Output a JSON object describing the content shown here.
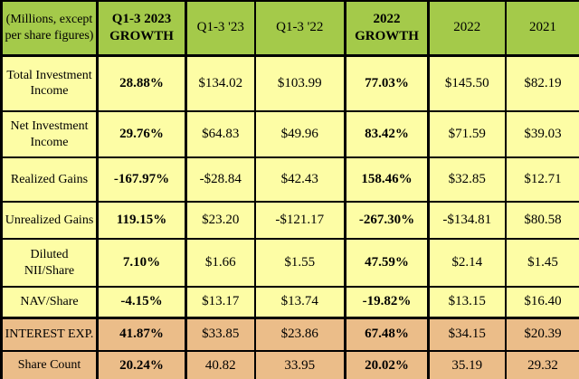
{
  "colors": {
    "header_green": "#A4CA4A",
    "body_yellow": "#FDFDA5",
    "highlight_tan": "#EBBD89",
    "border_black": "#000000",
    "text_black": "#000000"
  },
  "chart_data": {
    "type": "table",
    "corner_header": "(Millions, except per share figures)",
    "columns": [
      {
        "label": "Q1-3 2023 GROWTH",
        "growth": true
      },
      {
        "label": "Q1-3 '23",
        "growth": false
      },
      {
        "label": "Q1-3 '22",
        "growth": false
      },
      {
        "label": "2022 GROWTH",
        "growth": true
      },
      {
        "label": "2022",
        "growth": false
      },
      {
        "label": "2021",
        "growth": false
      }
    ],
    "rows": [
      {
        "label": "Total Investment Income",
        "values": [
          "28.88%",
          "$134.02",
          "$103.99",
          "77.03%",
          "$145.50",
          "$82.19"
        ],
        "highlight": false
      },
      {
        "label": "Net Investment Income",
        "values": [
          "29.76%",
          "$64.83",
          "$49.96",
          "83.42%",
          "$71.59",
          "$39.03"
        ],
        "highlight": false
      },
      {
        "label": "Realized Gains",
        "values": [
          "-167.97%",
          "-$28.84",
          "$42.43",
          "158.46%",
          "$32.85",
          "$12.71"
        ],
        "highlight": false
      },
      {
        "label": "Unrealized Gains",
        "values": [
          "119.15%",
          "$23.20",
          "-$121.17",
          "-267.30%",
          "-$134.81",
          "$80.58"
        ],
        "highlight": false
      },
      {
        "label": "Diluted NII/Share",
        "values": [
          "7.10%",
          "$1.66",
          "$1.55",
          "47.59%",
          "$2.14",
          "$1.45"
        ],
        "highlight": false
      },
      {
        "label": "NAV/Share",
        "values": [
          "-4.15%",
          "$13.17",
          "$13.74",
          "-19.82%",
          "$13.15",
          "$16.40"
        ],
        "highlight": false
      },
      {
        "label": "INTEREST EXP.",
        "values": [
          "41.87%",
          "$33.85",
          "$23.86",
          "67.48%",
          "$34.15",
          "$20.39"
        ],
        "highlight": true
      },
      {
        "label": "Share Count",
        "values": [
          "20.24%",
          "40.82",
          "33.95",
          "20.02%",
          "35.19",
          "29.32"
        ],
        "highlight": true
      }
    ]
  }
}
